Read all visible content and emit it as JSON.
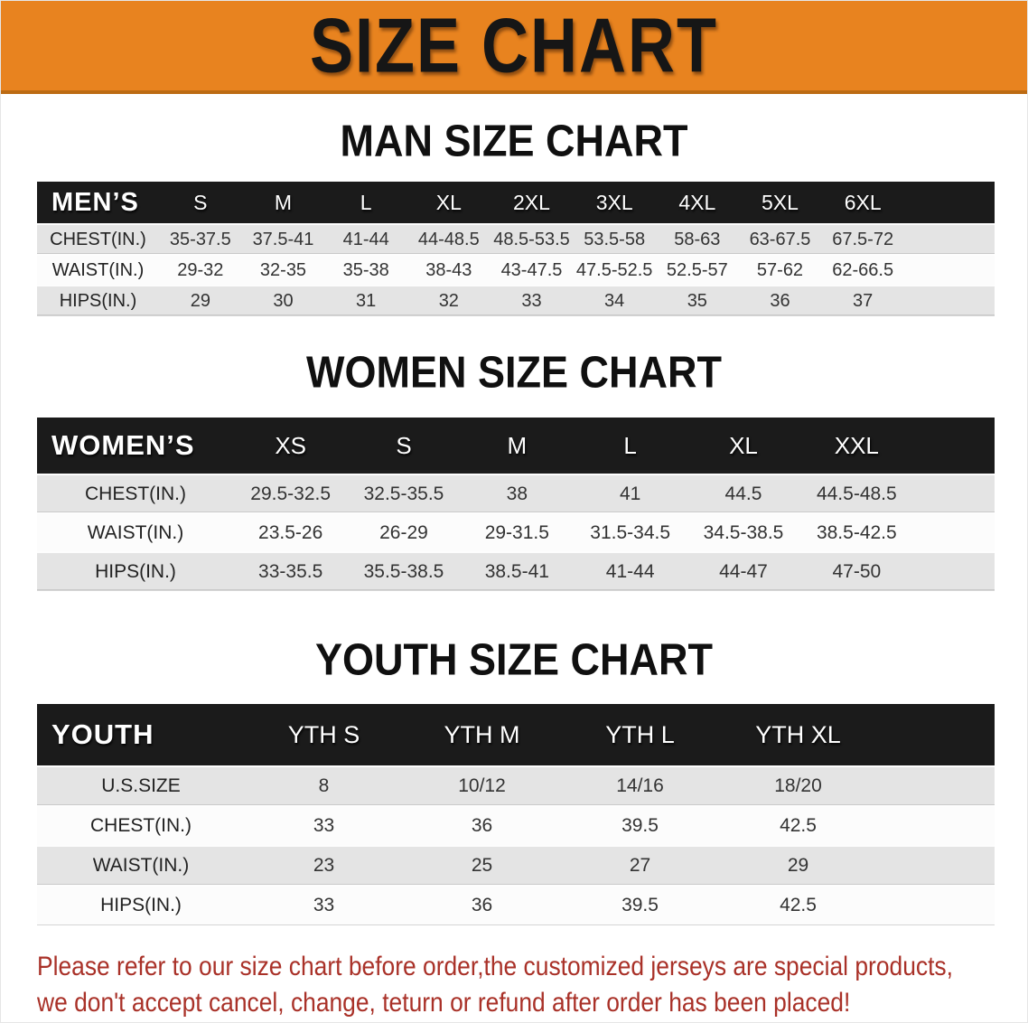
{
  "banner": {
    "title": "SIZE CHART"
  },
  "colors": {
    "banner_bg": "#E8831F",
    "banner_border": "#BC6B13",
    "header_bg": "#1B1B1B",
    "header_fg": "#FFFFFF",
    "row_gray": "#E4E4E4",
    "row_white": "#FCFCFC",
    "text_dark": "#222222",
    "disclaimer_red": "#A93128"
  },
  "men": {
    "heading": "MAN SIZE CHART",
    "corner": "MEN’S",
    "columns": [
      "S",
      "M",
      "L",
      "XL",
      "2XL",
      "3XL",
      "4XL",
      "5XL",
      "6XL"
    ],
    "rows": [
      {
        "label": "CHEST(IN.)",
        "values": [
          "35-37.5",
          "37.5-41",
          "41-44",
          "44-48.5",
          "48.5-53.5",
          "53.5-58",
          "58-63",
          "63-67.5",
          "67.5-72"
        ]
      },
      {
        "label": "WAIST(IN.)",
        "values": [
          "29-32",
          "32-35",
          "35-38",
          "38-43",
          "43-47.5",
          "47.5-52.5",
          "52.5-57",
          "57-62",
          "62-66.5"
        ]
      },
      {
        "label": "HIPS(IN.)",
        "values": [
          "29",
          "30",
          "31",
          "32",
          "33",
          "34",
          "35",
          "36",
          "37"
        ]
      }
    ]
  },
  "women": {
    "heading": "WOMEN SIZE CHART",
    "corner": "WOMEN’S",
    "columns": [
      "XS",
      "S",
      "M",
      "L",
      "XL",
      "XXL"
    ],
    "rows": [
      {
        "label": "CHEST(IN.)",
        "values": [
          "29.5-32.5",
          "32.5-35.5",
          "38",
          "41",
          "44.5",
          "44.5-48.5"
        ]
      },
      {
        "label": "WAIST(IN.)",
        "values": [
          "23.5-26",
          "26-29",
          "29-31.5",
          "31.5-34.5",
          "34.5-38.5",
          "38.5-42.5"
        ]
      },
      {
        "label": "HIPS(IN.)",
        "values": [
          "33-35.5",
          "35.5-38.5",
          "38.5-41",
          "41-44",
          "44-47",
          "47-50"
        ]
      }
    ]
  },
  "youth": {
    "heading": "YOUTH SIZE CHART",
    "corner": "YOUTH",
    "columns": [
      "YTH S",
      "YTH M",
      "YTH L",
      "YTH XL"
    ],
    "rows": [
      {
        "label": "U.S.SIZE",
        "values": [
          "8",
          "10/12",
          "14/16",
          "18/20"
        ]
      },
      {
        "label": "CHEST(IN.)",
        "values": [
          "33",
          "36",
          "39.5",
          "42.5"
        ]
      },
      {
        "label": "WAIST(IN.)",
        "values": [
          "23",
          "25",
          "27",
          "29"
        ]
      },
      {
        "label": "HIPS(IN.)",
        "values": [
          "33",
          "36",
          "39.5",
          "42.5"
        ]
      }
    ]
  },
  "disclaimer": {
    "line1": "Please refer to our size chart before order,the customized jerseys are special products,",
    "line2": "we don't accept cancel, change, teturn or refund after order has been placed!"
  }
}
